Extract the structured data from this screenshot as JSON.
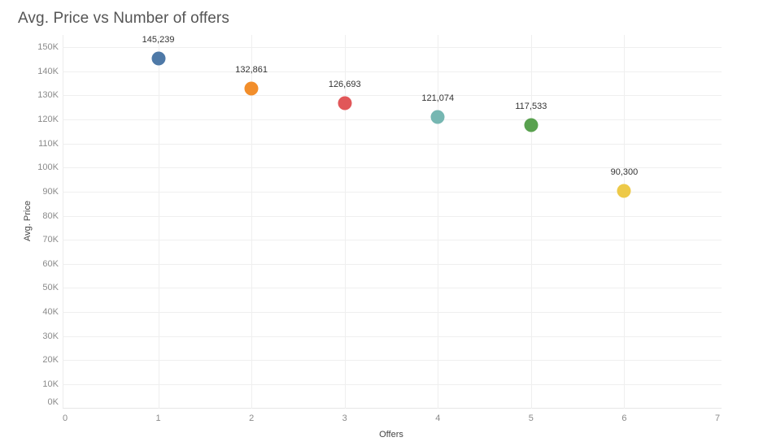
{
  "chart_data": {
    "type": "scatter",
    "title": "Avg. Price vs Number of offers",
    "xlabel": "Offers",
    "ylabel": "Avg. Price",
    "xlim": [
      0,
      7
    ],
    "ylim": [
      0,
      150000
    ],
    "grid": true,
    "legend": null,
    "x_ticks": [
      "0",
      "1",
      "2",
      "3",
      "4",
      "5",
      "6",
      "7"
    ],
    "y_ticks": [
      "0K",
      "10K",
      "20K",
      "30K",
      "40K",
      "50K",
      "60K",
      "70K",
      "80K",
      "90K",
      "100K",
      "110K",
      "120K",
      "130K",
      "140K",
      "150K"
    ],
    "points": [
      {
        "x": 1,
        "y": 145239,
        "label": "145,239",
        "color": "#4e79a7"
      },
      {
        "x": 2,
        "y": 132861,
        "label": "132,861",
        "color": "#f28e2b"
      },
      {
        "x": 3,
        "y": 126693,
        "label": "126,693",
        "color": "#e15759"
      },
      {
        "x": 4,
        "y": 121074,
        "label": "121,074",
        "color": "#76b7b2"
      },
      {
        "x": 5,
        "y": 117533,
        "label": "117,533",
        "color": "#59a14f"
      },
      {
        "x": 6,
        "y": 90300,
        "label": "90,300",
        "color": "#edc948"
      }
    ]
  }
}
